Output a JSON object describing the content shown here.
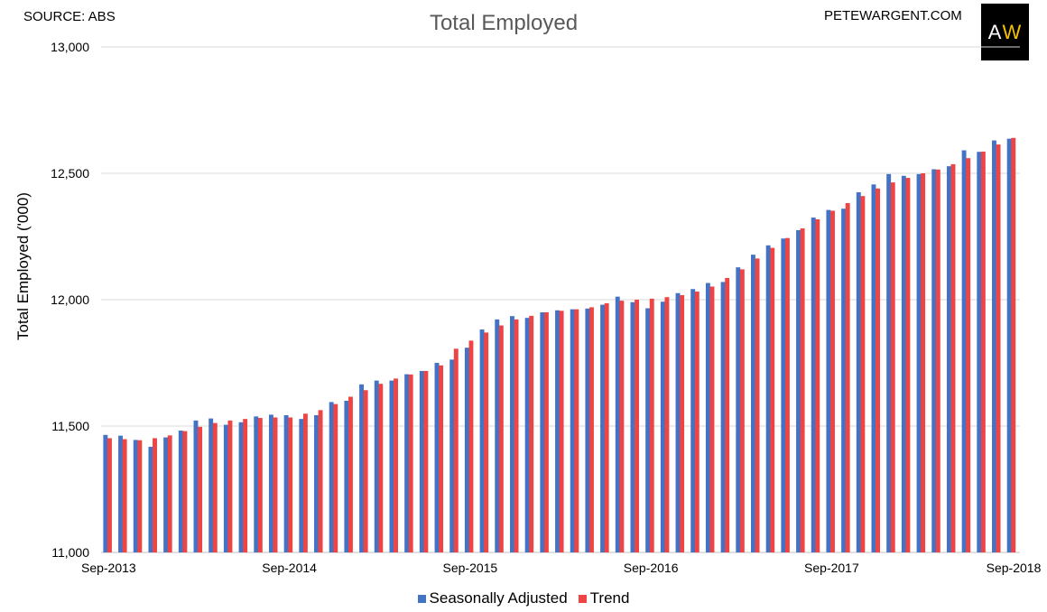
{
  "header": {
    "source": "SOURCE: ABS",
    "site": "PETEWARGENT.COM",
    "logo_left": "A",
    "logo_right": "W"
  },
  "chart_data": {
    "type": "bar",
    "title": "Total Employed",
    "xlabel": "",
    "ylabel": "Total Employed ('000)",
    "ylim": [
      11000,
      13000
    ],
    "y_ticks": [
      11000,
      11500,
      12000,
      12500,
      13000
    ],
    "y_tick_labels": [
      "11,000",
      "11,500",
      "12,000",
      "12,500",
      "13,000"
    ],
    "x_tick_labels": [
      "Sep-2013",
      "Sep-2014",
      "Sep-2015",
      "Sep-2016",
      "Sep-2017",
      "Sep-2018"
    ],
    "x_tick_indices": [
      0,
      12,
      24,
      36,
      48,
      60
    ],
    "grid": true,
    "legend_position": "bottom",
    "categories": [
      "Sep-2013",
      "Oct-2013",
      "Nov-2013",
      "Dec-2013",
      "Jan-2014",
      "Feb-2014",
      "Mar-2014",
      "Apr-2014",
      "May-2014",
      "Jun-2014",
      "Jul-2014",
      "Aug-2014",
      "Sep-2014",
      "Oct-2014",
      "Nov-2014",
      "Dec-2014",
      "Jan-2015",
      "Feb-2015",
      "Mar-2015",
      "Apr-2015",
      "May-2015",
      "Jun-2015",
      "Jul-2015",
      "Aug-2015",
      "Sep-2015",
      "Oct-2015",
      "Nov-2015",
      "Dec-2015",
      "Jan-2016",
      "Feb-2016",
      "Mar-2016",
      "Apr-2016",
      "May-2016",
      "Jun-2016",
      "Jul-2016",
      "Aug-2016",
      "Sep-2016",
      "Oct-2016",
      "Nov-2016",
      "Dec-2016",
      "Jan-2017",
      "Feb-2017",
      "Mar-2017",
      "Apr-2017",
      "May-2017",
      "Jun-2017",
      "Jul-2017",
      "Aug-2017",
      "Sep-2017",
      "Oct-2017",
      "Nov-2017",
      "Dec-2017",
      "Jan-2018",
      "Feb-2018",
      "Mar-2018",
      "Apr-2018",
      "May-2018",
      "Jun-2018",
      "Jul-2018",
      "Aug-2018",
      "Sep-2018"
    ],
    "series": [
      {
        "name": "Seasonally Adjusted",
        "color": "#4472c4",
        "values": [
          11465,
          11462,
          11445,
          11418,
          11455,
          11482,
          11522,
          11530,
          11505,
          11515,
          11538,
          11545,
          11543,
          11528,
          11543,
          11595,
          11600,
          11665,
          11680,
          11680,
          11705,
          11718,
          11750,
          11763,
          11810,
          11882,
          11922,
          11935,
          11928,
          11950,
          11958,
          11962,
          11965,
          11980,
          12012,
          11990,
          11966,
          11992,
          12026,
          12042,
          12066,
          12070,
          12128,
          12178,
          12215,
          12242,
          12275,
          12325,
          12355,
          12360,
          12425,
          12456,
          12497,
          12490,
          12497,
          12516,
          12528,
          12591,
          12585,
          12630,
          12637
        ]
      },
      {
        "name": "Trend",
        "color": "#ee4444",
        "values": [
          11452,
          11448,
          11444,
          11452,
          11463,
          11480,
          11497,
          11512,
          11522,
          11528,
          11532,
          11534,
          11534,
          11549,
          11563,
          11587,
          11616,
          11642,
          11667,
          11688,
          11704,
          11718,
          11740,
          11806,
          11838,
          11870,
          11898,
          11922,
          11936,
          11950,
          11956,
          11962,
          11970,
          11986,
          11996,
          12000,
          12004,
          12010,
          12018,
          12032,
          12052,
          12086,
          12120,
          12163,
          12205,
          12244,
          12282,
          12318,
          12352,
          12382,
          12410,
          12440,
          12464,
          12482,
          12500,
          12515,
          12536,
          12560,
          12586,
          12614,
          12640
        ]
      }
    ]
  }
}
